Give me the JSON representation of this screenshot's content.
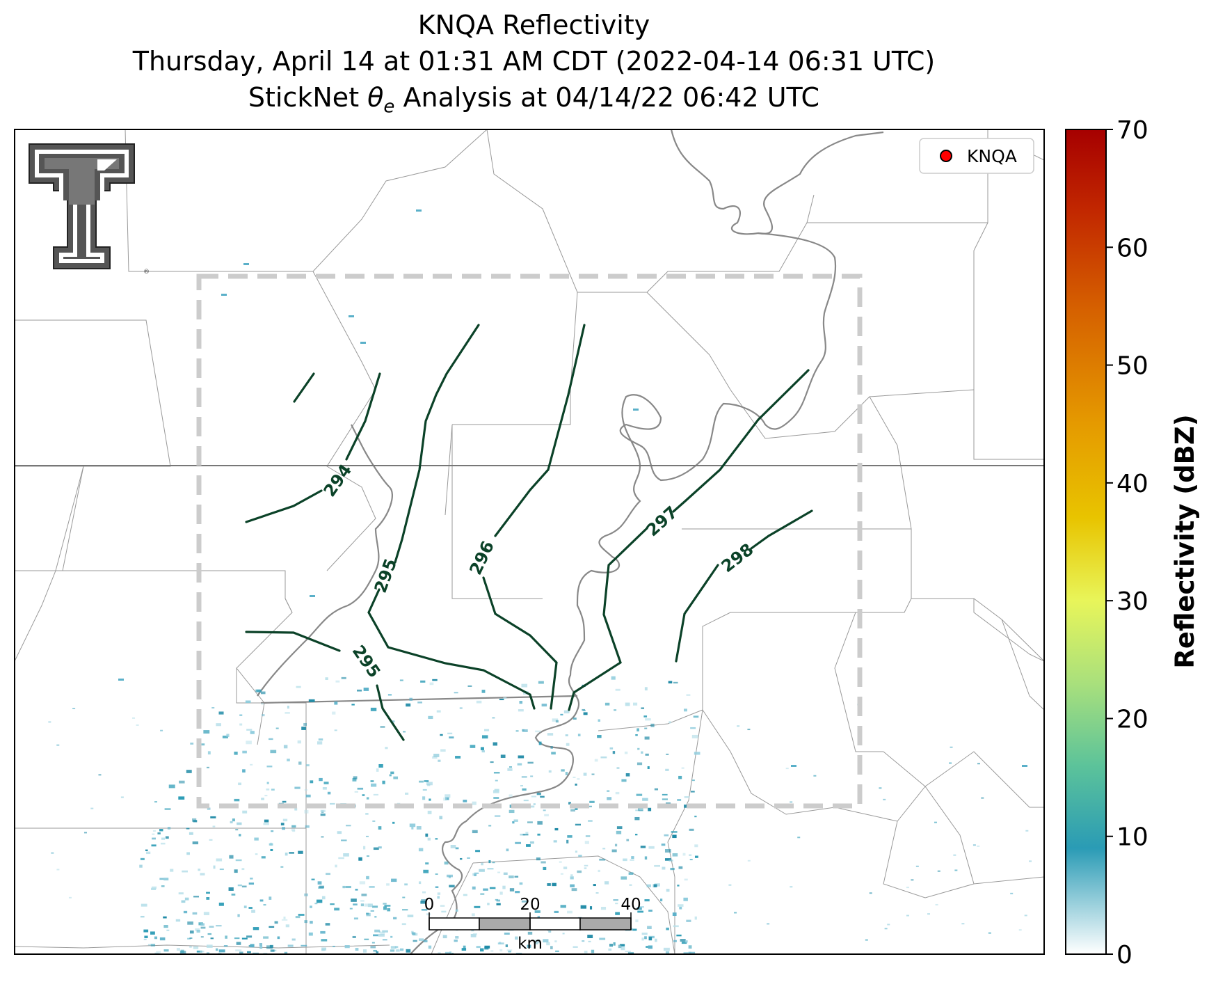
{
  "header": {
    "title_line1": "KNQA Reflectivity",
    "title_line2": "Thursday, April 14 at 01:31 AM CDT (2022-04-14 06:31 UTC)",
    "title_line3_prefix": "StickNet ",
    "title_line3_theta": "θ",
    "title_line3_sub": "e",
    "title_line3_suffix": " Analysis at 04/14/22 06:42 UTC"
  },
  "legend": {
    "marker_label": "KNQA",
    "marker_color": "#ff0000"
  },
  "logo": {
    "name": "Texas Tech double-T logo",
    "color": "#555555"
  },
  "colorbar": {
    "label": "Reflectivity (dBZ)",
    "min": 0,
    "max": 70,
    "ticks": [
      "0",
      "10",
      "20",
      "30",
      "40",
      "50",
      "60",
      "70"
    ],
    "stops": [
      {
        "v": 0,
        "c": "#ffffff"
      },
      {
        "v": 9,
        "c": "#2a9bb5"
      },
      {
        "v": 16,
        "c": "#5cc39a"
      },
      {
        "v": 23,
        "c": "#a9e07c"
      },
      {
        "v": 30,
        "c": "#e8f55a"
      },
      {
        "v": 37,
        "c": "#e8c400"
      },
      {
        "v": 45,
        "c": "#e59a00"
      },
      {
        "v": 55,
        "c": "#d55f00"
      },
      {
        "v": 63,
        "c": "#c22800"
      },
      {
        "v": 70,
        "c": "#a60000"
      }
    ]
  },
  "contours": {
    "color": "#0b4228",
    "labels": [
      "294",
      "295",
      "296",
      "297",
      "298",
      "295"
    ]
  },
  "scale_bar": {
    "ticks": [
      "0",
      "20",
      "40"
    ],
    "unit": "km"
  },
  "colors": {
    "state_border": "#777777",
    "county_border": "#999999",
    "river": "#888888",
    "analysis_box": "#cccccc",
    "echo": "#2a9bb5"
  }
}
